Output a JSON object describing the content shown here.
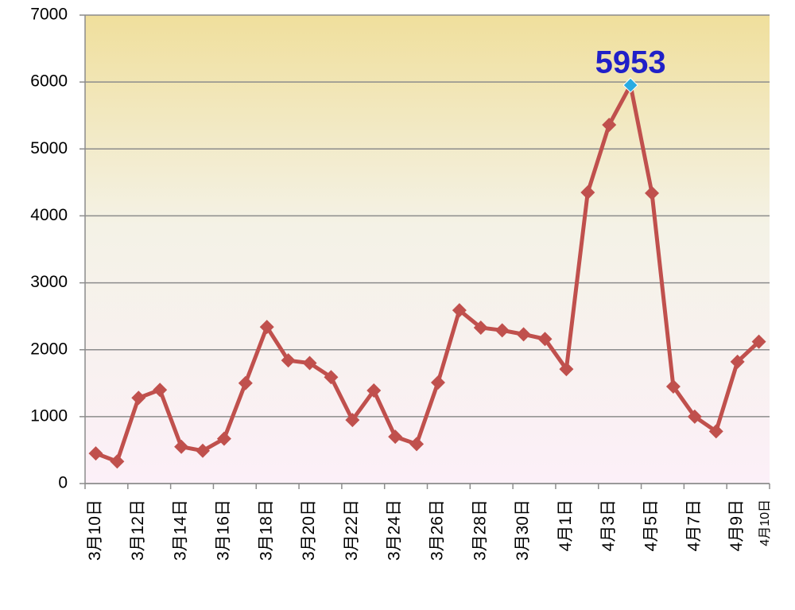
{
  "chart_data": {
    "type": "line",
    "categories": [
      "3月10日",
      null,
      "3月12日",
      null,
      "3月14日",
      null,
      "3月16日",
      null,
      "3月18日",
      null,
      "3月20日",
      null,
      "3月22日",
      null,
      "3月24日",
      null,
      "3月26日",
      null,
      "3月28日",
      null,
      "3月30日",
      null,
      "4月1日",
      null,
      "4月3日",
      null,
      "4月5日",
      null,
      "4月7日",
      null,
      "4月9日",
      "4月10日"
    ],
    "series": [
      {
        "name": null,
        "color": "#c0504d",
        "values": [
          450,
          330,
          1280,
          1400,
          550,
          490,
          670,
          1500,
          2340,
          1840,
          1800,
          1590,
          950,
          1390,
          700,
          590,
          1510,
          2590,
          2330,
          2290,
          2230,
          2160,
          1710,
          4350,
          5360,
          5953,
          4340,
          1450,
          1000,
          780,
          1820,
          2120
        ],
        "value_labels": [
          null,
          null,
          null,
          null,
          null,
          null,
          null,
          null,
          null,
          null,
          null,
          null,
          null,
          null,
          null,
          null,
          null,
          null,
          null,
          null,
          null,
          null,
          null,
          null,
          null,
          "5953",
          null,
          null,
          null,
          null,
          null,
          null
        ]
      }
    ],
    "highlight_color": "#29abe2",
    "label_color": "#2020c8",
    "ylim": [
      0,
      7000
    ],
    "yticks": [
      0,
      1000,
      2000,
      3000,
      4000,
      5000,
      6000,
      7000
    ],
    "grid": true
  }
}
